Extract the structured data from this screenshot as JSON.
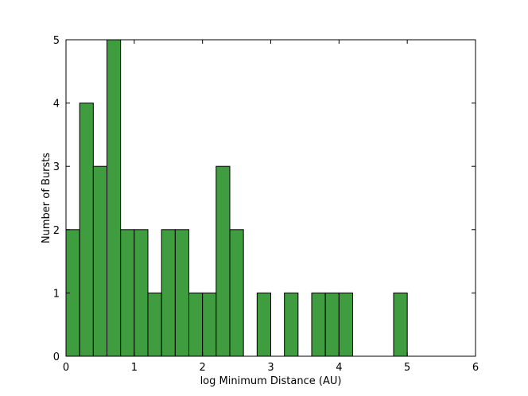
{
  "chart_data": {
    "type": "bar",
    "title": "",
    "xlabel": "log Minimum Distance (AU)",
    "ylabel": "Number of Bursts",
    "xlim": [
      0,
      6
    ],
    "ylim": [
      0,
      5
    ],
    "xticks": [
      "0",
      "1",
      "2",
      "3",
      "4",
      "5",
      "6"
    ],
    "yticks": [
      "0",
      "1",
      "2",
      "3",
      "4",
      "5"
    ],
    "bin_width": 0.2,
    "bins": [
      {
        "x0": 0.0,
        "x1": 0.2,
        "count": 2
      },
      {
        "x0": 0.2,
        "x1": 0.4,
        "count": 4
      },
      {
        "x0": 0.4,
        "x1": 0.6,
        "count": 3
      },
      {
        "x0": 0.6,
        "x1": 0.8,
        "count": 5
      },
      {
        "x0": 0.8,
        "x1": 1.0,
        "count": 2
      },
      {
        "x0": 1.0,
        "x1": 1.2,
        "count": 2
      },
      {
        "x0": 1.2,
        "x1": 1.4,
        "count": 1
      },
      {
        "x0": 1.4,
        "x1": 1.6,
        "count": 2
      },
      {
        "x0": 1.6,
        "x1": 1.8,
        "count": 2
      },
      {
        "x0": 1.8,
        "x1": 2.0,
        "count": 1
      },
      {
        "x0": 2.0,
        "x1": 2.2,
        "count": 1
      },
      {
        "x0": 2.2,
        "x1": 2.4,
        "count": 3
      },
      {
        "x0": 2.4,
        "x1": 2.6,
        "count": 2
      },
      {
        "x0": 2.8,
        "x1": 3.0,
        "count": 1
      },
      {
        "x0": 3.2,
        "x1": 3.4,
        "count": 1
      },
      {
        "x0": 3.6,
        "x1": 3.8,
        "count": 1
      },
      {
        "x0": 3.8,
        "x1": 4.0,
        "count": 1
      },
      {
        "x0": 4.0,
        "x1": 4.2,
        "count": 1
      },
      {
        "x0": 4.8,
        "x1": 5.0,
        "count": 1
      }
    ],
    "bar_color": "#3f9d3f",
    "edge_color": "#000000",
    "grid": false,
    "legend": "none"
  }
}
